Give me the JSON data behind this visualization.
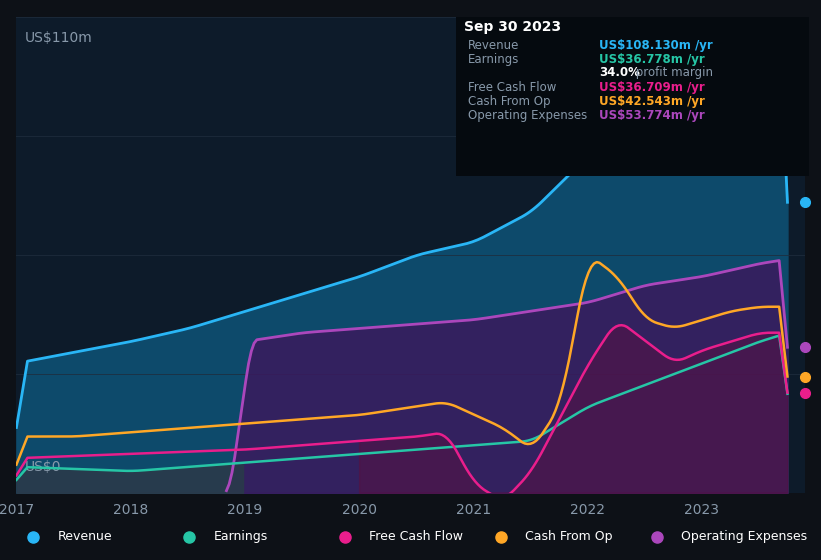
{
  "bg_color": "#0d1117",
  "plot_bg_color": "#0d1b2a",
  "grid_color": "#1e2d3d",
  "title_y_label": "US$110m",
  "title_y0_label": "US$0",
  "x_ticks": [
    2017,
    2018,
    2019,
    2020,
    2021,
    2022,
    2023
  ],
  "ylim": [
    0,
    110
  ],
  "series_colors": {
    "revenue": "#29b6f6",
    "earnings": "#26c6a6",
    "free_cash_flow": "#e91e8c",
    "cash_from_op": "#ffa726",
    "operating_expenses": "#ab47bc"
  },
  "revenue_fill_color": "#0d4a6b",
  "op_exp_fill_color": "#3a1a5e",
  "info_box": {
    "date": "Sep 30 2023",
    "revenue_label": "Revenue",
    "revenue_value": "US$108.130m",
    "revenue_color": "#29b6f6",
    "earnings_label": "Earnings",
    "earnings_value": "US$36.778m",
    "earnings_color": "#26c6a6",
    "margin_text": "34.0% profit margin",
    "fcf_label": "Free Cash Flow",
    "fcf_value": "US$36.709m",
    "fcf_color": "#e91e8c",
    "cop_label": "Cash From Op",
    "cop_value": "US$42.543m",
    "cop_color": "#ffa726",
    "opex_label": "Operating Expenses",
    "opex_value": "US$53.774m",
    "opex_color": "#ab47bc"
  },
  "legend": [
    {
      "label": "Revenue",
      "color": "#29b6f6"
    },
    {
      "label": "Earnings",
      "color": "#26c6a6"
    },
    {
      "label": "Free Cash Flow",
      "color": "#e91e8c"
    },
    {
      "label": "Cash From Op",
      "color": "#ffa726"
    },
    {
      "label": "Operating Expenses",
      "color": "#ab47bc"
    }
  ]
}
